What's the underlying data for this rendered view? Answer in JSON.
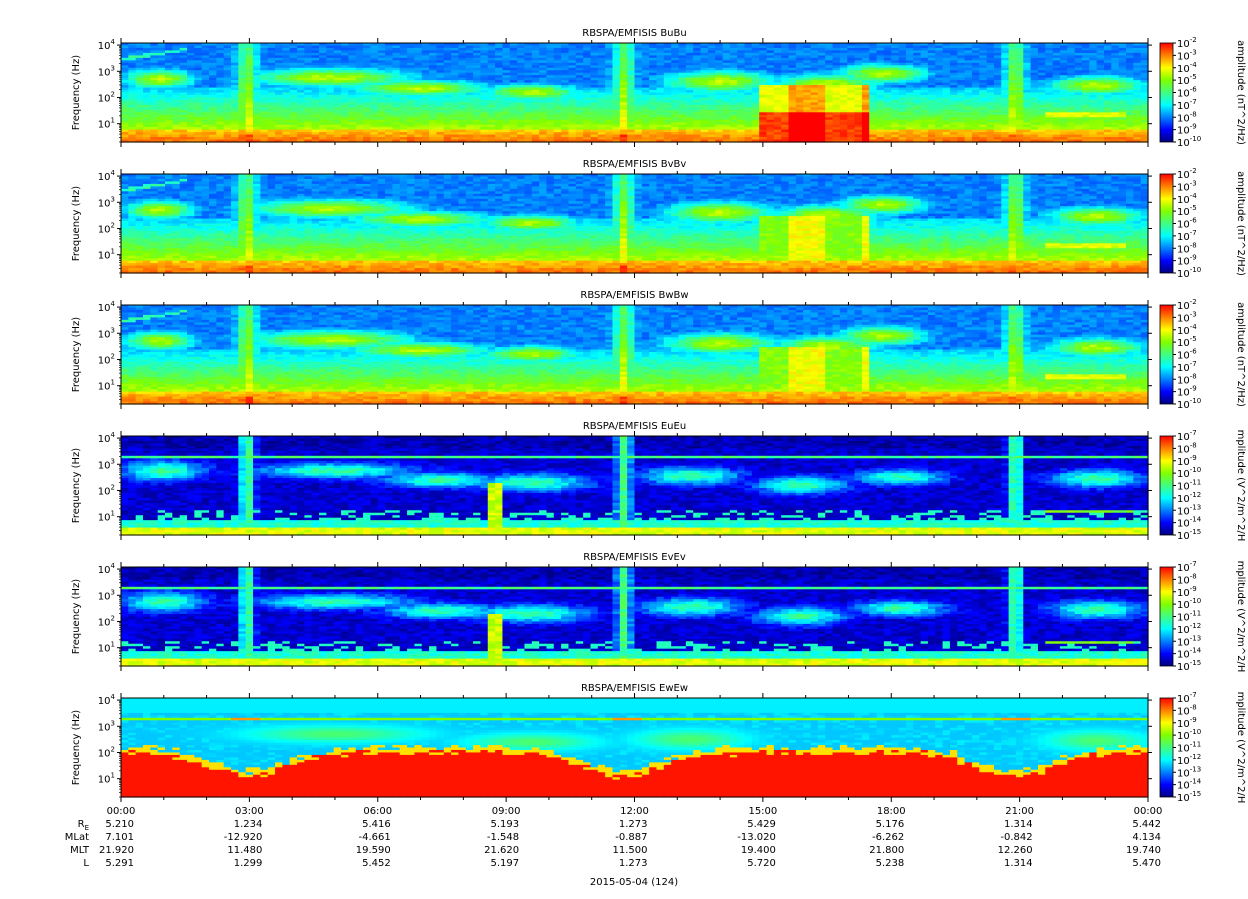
{
  "chart_data": {
    "type": "heatmap",
    "scale": "log",
    "colormap": [
      "#000080",
      "#0000ff",
      "#0080ff",
      "#00ffff",
      "#40ff80",
      "#80ff00",
      "#ffff00",
      "#ff8000",
      "#ff0000"
    ],
    "x_ticks": [
      "00:00",
      "03:00",
      "06:00",
      "09:00",
      "12:00",
      "15:00",
      "18:00",
      "21:00",
      "00:00"
    ],
    "x_range_hours": [
      0,
      24
    ],
    "y_range_hz": [
      2,
      12000
    ],
    "y_ticks": [
      {
        "base": "10",
        "exp": "1",
        "value": 10
      },
      {
        "base": "10",
        "exp": "2",
        "value": 100
      },
      {
        "base": "10",
        "exp": "3",
        "value": 1000
      },
      {
        "base": "10",
        "exp": "4",
        "value": 10000
      }
    ],
    "xlabel": "2015-05-04 (124)",
    "panels": [
      {
        "title": "RBSPA/EMFISIS  BuBu",
        "ylabel": "Frequency (Hz)",
        "clabel": "amplitude (nT^2/Hz)",
        "cbar_exps": [
          "-2",
          "-3",
          "-4",
          "-5",
          "-6",
          "-7",
          "-8",
          "-9",
          "-10"
        ],
        "field": "B",
        "variant": "u"
      },
      {
        "title": "RBSPA/EMFISIS  BvBv",
        "ylabel": "Frequency (Hz)",
        "clabel": "amplitude (nT^2/Hz)",
        "cbar_exps": [
          "-2",
          "-3",
          "-4",
          "-5",
          "-6",
          "-7",
          "-8",
          "-9",
          "-10"
        ],
        "field": "B",
        "variant": "v"
      },
      {
        "title": "RBSPA/EMFISIS  BwBw",
        "ylabel": "Frequency (Hz)",
        "clabel": "amplitude (nT^2/Hz)",
        "cbar_exps": [
          "-2",
          "-3",
          "-4",
          "-5",
          "-6",
          "-7",
          "-8",
          "-9",
          "-10"
        ],
        "field": "B",
        "variant": "w"
      },
      {
        "title": "RBSPA/EMFISIS  EuEu",
        "ylabel": "Frequency (Hz)",
        "clabel": "mplitude (V^2/m^2/H",
        "cbar_exps": [
          "-7",
          "-8",
          "-9",
          "-10",
          "-11",
          "-12",
          "-13",
          "-14",
          "-15"
        ],
        "field": "E",
        "variant": "u"
      },
      {
        "title": "RBSPA/EMFISIS  EvEv",
        "ylabel": "Frequency (Hz)",
        "clabel": "mplitude (V^2/m^2/H",
        "cbar_exps": [
          "-7",
          "-8",
          "-9",
          "-10",
          "-11",
          "-12",
          "-13",
          "-14",
          "-15"
        ],
        "field": "E",
        "variant": "v"
      },
      {
        "title": "RBSPA/EMFISIS  EwEw",
        "ylabel": "Frequency (Hz)",
        "clabel": "mplitude (V^2/m^2/H",
        "cbar_exps": [
          "-7",
          "-8",
          "-9",
          "-10",
          "-11",
          "-12",
          "-13",
          "-14",
          "-15"
        ],
        "field": "Ew",
        "variant": "w"
      }
    ],
    "ephemeris": {
      "labels": [
        "R",
        "MLat",
        "MLT",
        "L"
      ],
      "label_subscript": "E",
      "rows": [
        [
          "5.210",
          "1.234",
          "5.416",
          "5.193",
          "1.273",
          "5.429",
          "5.176",
          "1.314",
          "5.442"
        ],
        [
          "7.101",
          "-12.920",
          "-4.661",
          "-1.548",
          "-0.887",
          "-13.020",
          "-6.262",
          "-0.842",
          "4.134"
        ],
        [
          "21.920",
          "11.480",
          "19.590",
          "21.620",
          "11.500",
          "19.400",
          "21.800",
          "12.260",
          "19.740"
        ],
        [
          "5.291",
          "1.299",
          "5.452",
          "5.197",
          "1.273",
          "5.720",
          "5.238",
          "1.314",
          "5.470"
        ]
      ]
    }
  }
}
